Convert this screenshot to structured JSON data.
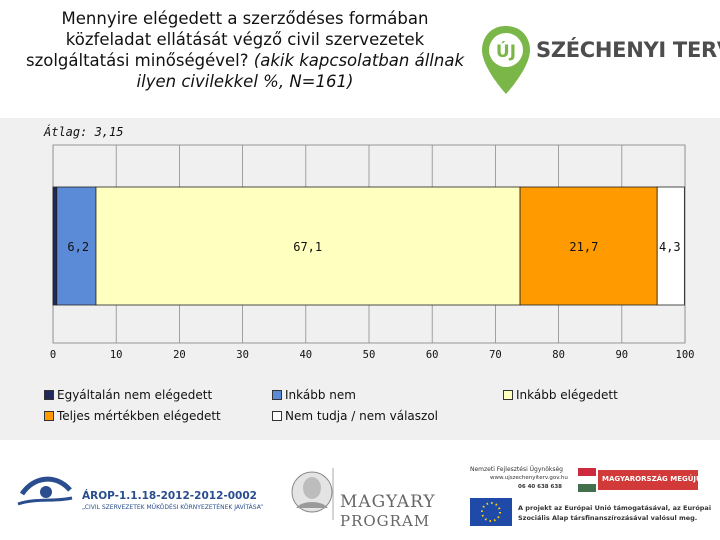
{
  "header": {
    "title_plain": "Mennyire elégedett a szerződéses formában közfeladat ellátását végző civil szervezetek szolgáltatási minőségével?",
    "title_italic": "(akik kapcsolatban állnak ilyen civilekkel %, N=161)",
    "logo_text": "SZÉCHENYI TERV",
    "logo_badge": "ÚJ"
  },
  "average_label": "Átlag: 3,15",
  "chart_data": {
    "type": "bar",
    "orientation": "horizontal",
    "stacked": true,
    "xlim": [
      0,
      100
    ],
    "xticks": [
      "0",
      "10",
      "20",
      "30",
      "40",
      "50",
      "60",
      "70",
      "80",
      "90",
      "100"
    ],
    "grid": true,
    "legend_position": "bottom",
    "series": [
      {
        "name": "Egyáltalán nem elégedett",
        "value": 0.6,
        "label": "",
        "color": "#1f2a5a"
      },
      {
        "name": "Inkább nem",
        "value": 6.2,
        "label": "6,2",
        "color": "#5b8bd6"
      },
      {
        "name": "Inkább elégedett",
        "value": 67.1,
        "label": "67,1",
        "color": "#ffffc0"
      },
      {
        "name": "Teljes mértékben elégedett",
        "value": 21.7,
        "label": "21,7",
        "color": "#ff9a00"
      },
      {
        "name": "Nem tudja / nem válaszol",
        "value": 4.3,
        "label": "4,3",
        "color": "#ffffff"
      }
    ]
  },
  "footer": {
    "arop_code": "ÁROP-1.1.18-2012-2012-0002",
    "arop_sub": "„CIVIL SZERVEZETEK MŰKÖDÉSI KÖRNYEZETÉNEK JAVÍTÁSA”",
    "magyary_line1": "MAGYARY",
    "magyary_line2": "PROGRAM",
    "nfu_name": "Nemzeti Fejlesztési Ügynökség",
    "nfu_web": "www.ujszechenyiterv.gov.hu",
    "nfu_phone": "06 40 638 638",
    "hu_badge": "MAGYARORSZÁG MEGÚJUL",
    "eu_text_1": "A projekt az Európai Unió támogatásával, az Európai",
    "eu_text_2": "Szociális Alap társfinanszírozásával valósul meg."
  }
}
